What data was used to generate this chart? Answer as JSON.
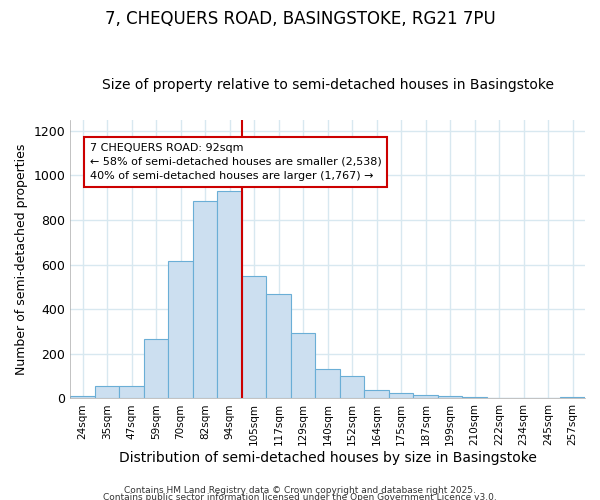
{
  "title1": "7, CHEQUERS ROAD, BASINGSTOKE, RG21 7PU",
  "title2": "Size of property relative to semi-detached houses in Basingstoke",
  "xlabel": "Distribution of semi-detached houses by size in Basingstoke",
  "ylabel": "Number of semi-detached properties",
  "bar_color": "#ccdff0",
  "bar_edge_color": "#6aaed6",
  "bins": [
    "24sqm",
    "35sqm",
    "47sqm",
    "59sqm",
    "70sqm",
    "82sqm",
    "94sqm",
    "105sqm",
    "117sqm",
    "129sqm",
    "140sqm",
    "152sqm",
    "164sqm",
    "175sqm",
    "187sqm",
    "199sqm",
    "210sqm",
    "222sqm",
    "234sqm",
    "245sqm",
    "257sqm"
  ],
  "values": [
    10,
    55,
    55,
    265,
    615,
    885,
    930,
    550,
    470,
    295,
    130,
    100,
    40,
    25,
    15,
    12,
    8,
    4,
    2,
    1,
    8
  ],
  "vline_index": 6.5,
  "vline_color": "#cc0000",
  "annotation_line1": "7 CHEQUERS ROAD: 92sqm",
  "annotation_line2": "← 58% of semi-detached houses are smaller (2,538)",
  "annotation_line3": "40% of semi-detached houses are larger (1,767) →",
  "annotation_box_color": "#ffffff",
  "annotation_box_edge": "#cc0000",
  "ylim": [
    0,
    1250
  ],
  "yticks": [
    0,
    200,
    400,
    600,
    800,
    1000,
    1200
  ],
  "footer1": "Contains HM Land Registry data © Crown copyright and database right 2025.",
  "footer2": "Contains public sector information licensed under the Open Government Licence v3.0.",
  "bg_color": "#ffffff",
  "grid_color": "#d8e8f0",
  "title1_fontsize": 12,
  "title2_fontsize": 10,
  "ylabel_fontsize": 9,
  "xlabel_fontsize": 10
}
